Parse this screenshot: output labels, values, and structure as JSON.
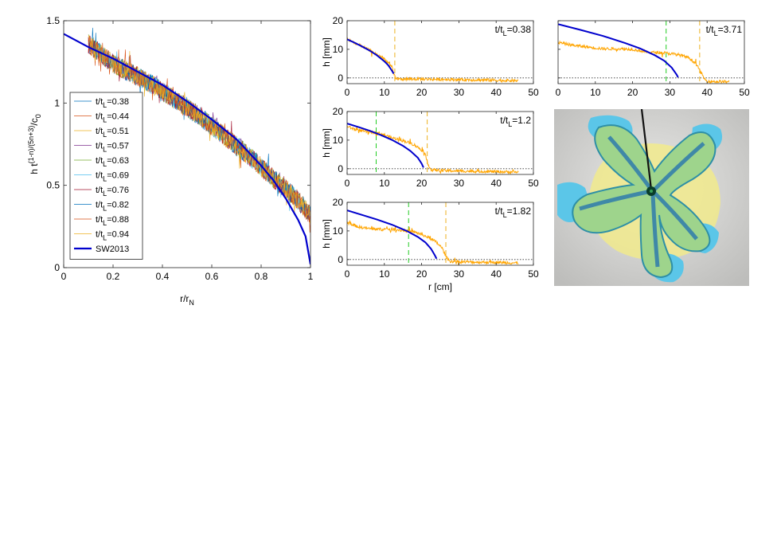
{
  "chart_data": [
    {
      "id": "main",
      "type": "line",
      "xlabel": "r/r_N",
      "ylabel": "h t^{(1-n)/(5n+3)}/c_0",
      "xlim": [
        0,
        1
      ],
      "ylim": [
        0,
        1.5
      ],
      "xticks": [
        "0",
        "0.2",
        "0.4",
        "0.6",
        "0.8",
        "1"
      ],
      "xtick_values": [
        0,
        0.2,
        0.4,
        0.6,
        0.8,
        1
      ],
      "yticks": [
        "0",
        "0.5",
        "1",
        "1.5"
      ],
      "ytick_values": [
        0,
        0.5,
        1,
        1.5
      ],
      "legend_location": "lower-left",
      "grid": false,
      "noisy_series": [
        {
          "name": "t/t_L=0.38",
          "color": "#0072bd"
        },
        {
          "name": "t/t_L=0.44",
          "color": "#d95319"
        },
        {
          "name": "t/t_L=0.51",
          "color": "#edb120"
        },
        {
          "name": "t/t_L=0.57",
          "color": "#7e2f8e"
        },
        {
          "name": "t/t_L=0.63",
          "color": "#77ac30"
        },
        {
          "name": "t/t_L=0.69",
          "color": "#4dbeee"
        },
        {
          "name": "t/t_L=0.76",
          "color": "#a2142f"
        },
        {
          "name": "t/t_L=0.82",
          "color": "#0072bd"
        },
        {
          "name": "t/t_L=0.88",
          "color": "#d95319"
        },
        {
          "name": "t/t_L=0.94",
          "color": "#edb120"
        }
      ],
      "noisy_x": [
        0.1,
        0.15,
        0.2,
        0.25,
        0.3,
        0.35,
        0.4,
        0.45,
        0.5,
        0.55,
        0.6,
        0.65,
        0.7,
        0.75,
        0.8,
        0.85,
        0.9,
        0.95,
        1.0
      ],
      "noisy_y_center": [
        1.36,
        1.3,
        1.24,
        1.2,
        1.16,
        1.12,
        1.07,
        1.02,
        0.97,
        0.92,
        0.86,
        0.8,
        0.74,
        0.68,
        0.61,
        0.54,
        0.48,
        0.41,
        0.32
      ],
      "model": {
        "name": "SW2013",
        "color": "#0000cd",
        "x": [
          0,
          0.1,
          0.2,
          0.3,
          0.4,
          0.5,
          0.6,
          0.7,
          0.8,
          0.85,
          0.9,
          0.95,
          0.98,
          1.0
        ],
        "y": [
          1.42,
          1.34,
          1.27,
          1.19,
          1.11,
          1.01,
          0.9,
          0.78,
          0.62,
          0.53,
          0.42,
          0.29,
          0.19,
          0.02
        ]
      }
    },
    {
      "id": "panel-0.38",
      "type": "line",
      "panel_label": "t/t_L=0.38",
      "ylabel": "h [mm]",
      "xlim": [
        0,
        50
      ],
      "ylim": [
        -2,
        20
      ],
      "xticks": [
        "0",
        "10",
        "20",
        "30",
        "40",
        "50"
      ],
      "yticks": [
        "0",
        "10",
        "20"
      ],
      "baseline": 0,
      "front_lines": [
        {
          "x": 12.8,
          "color": "#edb120"
        }
      ],
      "model": {
        "x": [
          0,
          2,
          4,
          6,
          8,
          10,
          11,
          12,
          12.5
        ],
        "y": [
          13.5,
          12.3,
          11.0,
          9.6,
          7.9,
          5.8,
          4.5,
          2.6,
          1.5
        ]
      },
      "measured": {
        "x": [
          0,
          1,
          2,
          3,
          4,
          5,
          6,
          7,
          8,
          9,
          10,
          11,
          12,
          12.5,
          13,
          14,
          20,
          30,
          40,
          46
        ],
        "y": [
          13.6,
          13.0,
          12.2,
          11.6,
          11.2,
          10.3,
          9.7,
          8.9,
          8.2,
          7.5,
          6.6,
          5.5,
          3.8,
          1.5,
          -0.2,
          -0.4,
          -0.4,
          -0.6,
          -0.8,
          -1.0
        ]
      }
    },
    {
      "id": "panel-1.2",
      "type": "line",
      "panel_label": "t/t_L=1.2",
      "ylabel": "h [mm]",
      "xlim": [
        0,
        50
      ],
      "ylim": [
        -2,
        20
      ],
      "xticks": [
        "0",
        "10",
        "20",
        "30",
        "40",
        "50"
      ],
      "yticks": [
        "0",
        "10",
        "20"
      ],
      "baseline": 0,
      "front_lines": [
        {
          "x": 7.8,
          "color": "#22cc22"
        },
        {
          "x": 21.5,
          "color": "#edb120"
        }
      ],
      "model": {
        "x": [
          0,
          3,
          6,
          9,
          12,
          15,
          17,
          19,
          20,
          20.5
        ],
        "y": [
          15.8,
          14.6,
          13.3,
          11.8,
          10.1,
          8.0,
          6.2,
          3.8,
          1.8,
          0.4
        ]
      },
      "measured": {
        "x": [
          0,
          2,
          4,
          6,
          8,
          10,
          12,
          14,
          16,
          18,
          20,
          21,
          21.7,
          22.5,
          25,
          30,
          40,
          46
        ],
        "y": [
          14.8,
          13.8,
          13.2,
          12.8,
          12.6,
          11.8,
          10.8,
          10.2,
          9.4,
          8.4,
          6.6,
          4.6,
          1.8,
          -0.4,
          -0.6,
          -0.8,
          -1.0,
          -1.2
        ]
      }
    },
    {
      "id": "panel-1.82",
      "type": "line",
      "panel_label": "t/t_L=1.82",
      "ylabel": "h [mm]",
      "xlabel": "r [cm]",
      "xlim": [
        0,
        50
      ],
      "ylim": [
        -2,
        20
      ],
      "xticks": [
        "0",
        "10",
        "20",
        "30",
        "40",
        "50"
      ],
      "yticks": [
        "0",
        "10",
        "20"
      ],
      "baseline": 0,
      "front_lines": [
        {
          "x": 16.5,
          "color": "#22cc22"
        },
        {
          "x": 26.5,
          "color": "#edb120"
        }
      ],
      "model": {
        "x": [
          0,
          4,
          8,
          12,
          16,
          19,
          21,
          22.5,
          23.5,
          24
        ],
        "y": [
          17.2,
          15.6,
          14.0,
          12.2,
          10.0,
          7.9,
          6.0,
          3.8,
          1.6,
          0.3
        ]
      },
      "measured": {
        "x": [
          0,
          3,
          6,
          9,
          12,
          15,
          18,
          20,
          22,
          24,
          25.5,
          26.5,
          27.5,
          30,
          40,
          46
        ],
        "y": [
          13.0,
          11.4,
          10.8,
          10.6,
          10.6,
          10.2,
          9.6,
          8.8,
          7.6,
          6.0,
          4.0,
          1.2,
          -0.6,
          -0.8,
          -1.0,
          -1.2
        ]
      }
    },
    {
      "id": "panel-3.71",
      "type": "line",
      "panel_label": "t/t_L=3.71",
      "xlim": [
        0,
        50
      ],
      "ylim": [
        -2,
        20
      ],
      "xticks": [
        "0",
        "10",
        "20",
        "30",
        "40",
        "50"
      ],
      "baseline": 0,
      "front_lines": [
        {
          "x": 29.0,
          "color": "#22cc22"
        },
        {
          "x": 38.0,
          "color": "#edb120"
        }
      ],
      "model": {
        "x": [
          0,
          6,
          12,
          18,
          22,
          26,
          28.5,
          30.5,
          31.8,
          32.2
        ],
        "y": [
          18.8,
          16.8,
          14.7,
          12.2,
          10.3,
          7.9,
          6.0,
          3.6,
          1.2,
          0.2
        ]
      },
      "measured": {
        "x": [
          0,
          4,
          8,
          12,
          16,
          20,
          24,
          28,
          32,
          35,
          37,
          38.5,
          39.5,
          40.5,
          46
        ],
        "y": [
          12.4,
          11.4,
          10.8,
          10.2,
          10.2,
          10.0,
          9.0,
          8.8,
          8.2,
          7.2,
          5.0,
          1.5,
          -0.8,
          -1.2,
          -1.4
        ]
      }
    }
  ]
}
